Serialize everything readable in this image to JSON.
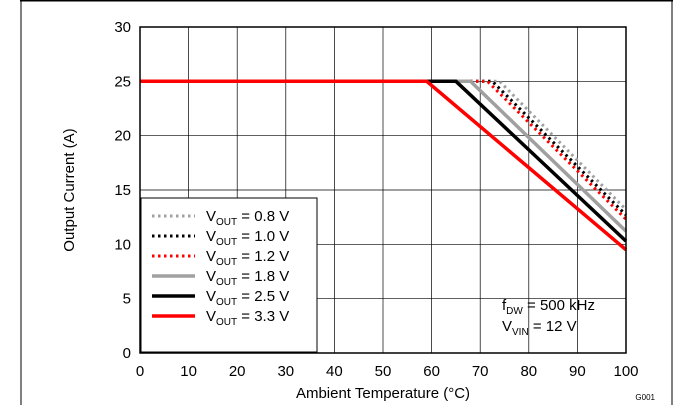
{
  "chart_data": {
    "type": "line",
    "xlabel": "Ambient Temperature (°C)",
    "ylabel": "Output Current (A)",
    "xlim": [
      0,
      100
    ],
    "ylim": [
      0,
      30
    ],
    "xticks": [
      0,
      10,
      20,
      30,
      40,
      50,
      60,
      70,
      80,
      90,
      100
    ],
    "yticks": [
      0,
      5,
      10,
      15,
      20,
      25,
      30
    ],
    "grid": true,
    "legend_position": "bottom-left",
    "series": [
      {
        "label_main": "V",
        "label_sub": "OUT",
        "label_rest": " = 0.8 V",
        "color": "#a0a0a0",
        "style": "dotted",
        "x": [
          0,
          74,
          100
        ],
        "y": [
          25,
          25,
          13.2
        ]
      },
      {
        "label_main": "V",
        "label_sub": "OUT",
        "label_rest": " = 1.0 V",
        "color": "#000000",
        "style": "dotted",
        "x": [
          0,
          72.5,
          100
        ],
        "y": [
          25,
          25,
          12.7
        ]
      },
      {
        "label_main": "V",
        "label_sub": "OUT",
        "label_rest": " = 1.2 V",
        "color": "#ff0000",
        "style": "dotted",
        "x": [
          0,
          71.5,
          100
        ],
        "y": [
          25,
          25,
          12.3
        ]
      },
      {
        "label_main": "V",
        "label_sub": "OUT",
        "label_rest": " = 1.8 V",
        "color": "#a0a0a0",
        "style": "solid",
        "x": [
          0,
          68,
          100
        ],
        "y": [
          25,
          25,
          11.2
        ]
      },
      {
        "label_main": "V",
        "label_sub": "OUT",
        "label_rest": " = 2.5 V",
        "color": "#000000",
        "style": "solid",
        "x": [
          0,
          65,
          100
        ],
        "y": [
          25,
          25,
          10.3
        ]
      },
      {
        "label_main": "V",
        "label_sub": "OUT",
        "label_rest": " = 3.3 V",
        "color": "#ff0000",
        "style": "solid",
        "x": [
          0,
          59,
          100
        ],
        "y": [
          25,
          25,
          9.5
        ]
      }
    ],
    "annotations": [
      {
        "main": "f",
        "sub": "DW",
        "rest": " = 500 kHz"
      },
      {
        "main": "V",
        "sub": "VIN",
        "rest": " = 12 V"
      }
    ],
    "figure_id": "G001"
  }
}
